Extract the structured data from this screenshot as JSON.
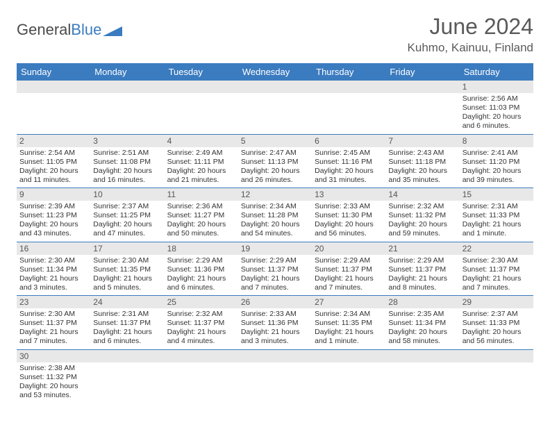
{
  "brand": {
    "name1": "General",
    "name2": "Blue"
  },
  "title": "June 2024",
  "location": "Kuhmo, Kainuu, Finland",
  "colors": {
    "header_bg": "#3b7bbf",
    "header_text": "#ffffff",
    "daynum_bg": "#e8e8e8",
    "border": "#3b7bbf",
    "text": "#333333",
    "title": "#5a5a5a"
  },
  "fonts": {
    "title_size": 32,
    "location_size": 17,
    "header_size": 13,
    "daynum_size": 12,
    "cell_size": 10.5
  },
  "day_names": [
    "Sunday",
    "Monday",
    "Tuesday",
    "Wednesday",
    "Thursday",
    "Friday",
    "Saturday"
  ],
  "weeks": [
    {
      "nums": [
        "",
        "",
        "",
        "",
        "",
        "",
        "1"
      ],
      "cells": [
        "",
        "",
        "",
        "",
        "",
        "",
        "Sunrise: 2:56 AM\nSunset: 11:03 PM\nDaylight: 20 hours and 6 minutes."
      ]
    },
    {
      "nums": [
        "2",
        "3",
        "4",
        "5",
        "6",
        "7",
        "8"
      ],
      "cells": [
        "Sunrise: 2:54 AM\nSunset: 11:05 PM\nDaylight: 20 hours and 11 minutes.",
        "Sunrise: 2:51 AM\nSunset: 11:08 PM\nDaylight: 20 hours and 16 minutes.",
        "Sunrise: 2:49 AM\nSunset: 11:11 PM\nDaylight: 20 hours and 21 minutes.",
        "Sunrise: 2:47 AM\nSunset: 11:13 PM\nDaylight: 20 hours and 26 minutes.",
        "Sunrise: 2:45 AM\nSunset: 11:16 PM\nDaylight: 20 hours and 31 minutes.",
        "Sunrise: 2:43 AM\nSunset: 11:18 PM\nDaylight: 20 hours and 35 minutes.",
        "Sunrise: 2:41 AM\nSunset: 11:20 PM\nDaylight: 20 hours and 39 minutes."
      ]
    },
    {
      "nums": [
        "9",
        "10",
        "11",
        "12",
        "13",
        "14",
        "15"
      ],
      "cells": [
        "Sunrise: 2:39 AM\nSunset: 11:23 PM\nDaylight: 20 hours and 43 minutes.",
        "Sunrise: 2:37 AM\nSunset: 11:25 PM\nDaylight: 20 hours and 47 minutes.",
        "Sunrise: 2:36 AM\nSunset: 11:27 PM\nDaylight: 20 hours and 50 minutes.",
        "Sunrise: 2:34 AM\nSunset: 11:28 PM\nDaylight: 20 hours and 54 minutes.",
        "Sunrise: 2:33 AM\nSunset: 11:30 PM\nDaylight: 20 hours and 56 minutes.",
        "Sunrise: 2:32 AM\nSunset: 11:32 PM\nDaylight: 20 hours and 59 minutes.",
        "Sunrise: 2:31 AM\nSunset: 11:33 PM\nDaylight: 21 hours and 1 minute."
      ]
    },
    {
      "nums": [
        "16",
        "17",
        "18",
        "19",
        "20",
        "21",
        "22"
      ],
      "cells": [
        "Sunrise: 2:30 AM\nSunset: 11:34 PM\nDaylight: 21 hours and 3 minutes.",
        "Sunrise: 2:30 AM\nSunset: 11:35 PM\nDaylight: 21 hours and 5 minutes.",
        "Sunrise: 2:29 AM\nSunset: 11:36 PM\nDaylight: 21 hours and 6 minutes.",
        "Sunrise: 2:29 AM\nSunset: 11:37 PM\nDaylight: 21 hours and 7 minutes.",
        "Sunrise: 2:29 AM\nSunset: 11:37 PM\nDaylight: 21 hours and 7 minutes.",
        "Sunrise: 2:29 AM\nSunset: 11:37 PM\nDaylight: 21 hours and 8 minutes.",
        "Sunrise: 2:30 AM\nSunset: 11:37 PM\nDaylight: 21 hours and 7 minutes."
      ]
    },
    {
      "nums": [
        "23",
        "24",
        "25",
        "26",
        "27",
        "28",
        "29"
      ],
      "cells": [
        "Sunrise: 2:30 AM\nSunset: 11:37 PM\nDaylight: 21 hours and 7 minutes.",
        "Sunrise: 2:31 AM\nSunset: 11:37 PM\nDaylight: 21 hours and 6 minutes.",
        "Sunrise: 2:32 AM\nSunset: 11:37 PM\nDaylight: 21 hours and 4 minutes.",
        "Sunrise: 2:33 AM\nSunset: 11:36 PM\nDaylight: 21 hours and 3 minutes.",
        "Sunrise: 2:34 AM\nSunset: 11:35 PM\nDaylight: 21 hours and 1 minute.",
        "Sunrise: 2:35 AM\nSunset: 11:34 PM\nDaylight: 20 hours and 58 minutes.",
        "Sunrise: 2:37 AM\nSunset: 11:33 PM\nDaylight: 20 hours and 56 minutes."
      ]
    },
    {
      "nums": [
        "30",
        "",
        "",
        "",
        "",
        "",
        ""
      ],
      "cells": [
        "Sunrise: 2:38 AM\nSunset: 11:32 PM\nDaylight: 20 hours and 53 minutes.",
        "",
        "",
        "",
        "",
        "",
        ""
      ]
    }
  ]
}
